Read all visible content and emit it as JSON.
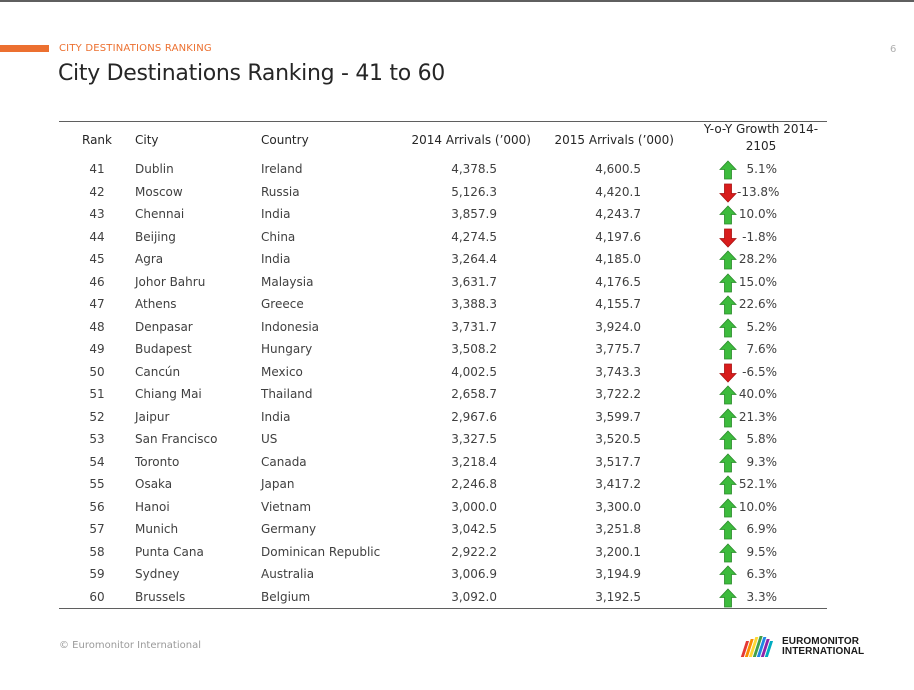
{
  "header": {
    "section_label": "CITY DESTINATIONS RANKING",
    "page_number": "6",
    "title": "City Destinations Ranking - 41 to 60"
  },
  "table": {
    "columns": {
      "rank": "Rank",
      "city": "City",
      "country": "Country",
      "arrivals_2014": "2014 Arrivals (’000)",
      "arrivals_2015": "2015 Arrivals (’000)",
      "growth_line1": "Y-o-Y Growth 2014-",
      "growth_line2": "2105"
    },
    "rows": [
      {
        "rank": "41",
        "city": "Dublin",
        "country": "Ireland",
        "a2014": "4,378.5",
        "a2015": "4,600.5",
        "growth": "5.1%",
        "dir": "up"
      },
      {
        "rank": "42",
        "city": "Moscow",
        "country": "Russia",
        "a2014": "5,126.3",
        "a2015": "4,420.1",
        "growth": "-13.8%",
        "dir": "down"
      },
      {
        "rank": "43",
        "city": "Chennai",
        "country": "India",
        "a2014": "3,857.9",
        "a2015": "4,243.7",
        "growth": "10.0%",
        "dir": "up"
      },
      {
        "rank": "44",
        "city": "Beijing",
        "country": "China",
        "a2014": "4,274.5",
        "a2015": "4,197.6",
        "growth": "-1.8%",
        "dir": "down"
      },
      {
        "rank": "45",
        "city": "Agra",
        "country": "India",
        "a2014": "3,264.4",
        "a2015": "4,185.0",
        "growth": "28.2%",
        "dir": "up"
      },
      {
        "rank": "46",
        "city": "Johor Bahru",
        "country": "Malaysia",
        "a2014": "3,631.7",
        "a2015": "4,176.5",
        "growth": "15.0%",
        "dir": "up"
      },
      {
        "rank": "47",
        "city": "Athens",
        "country": "Greece",
        "a2014": "3,388.3",
        "a2015": "4,155.7",
        "growth": "22.6%",
        "dir": "up"
      },
      {
        "rank": "48",
        "city": "Denpasar",
        "country": "Indonesia",
        "a2014": "3,731.7",
        "a2015": "3,924.0",
        "growth": "5.2%",
        "dir": "up"
      },
      {
        "rank": "49",
        "city": "Budapest",
        "country": "Hungary",
        "a2014": "3,508.2",
        "a2015": "3,775.7",
        "growth": "7.6%",
        "dir": "up"
      },
      {
        "rank": "50",
        "city": "Cancún",
        "country": "Mexico",
        "a2014": "4,002.5",
        "a2015": "3,743.3",
        "growth": "-6.5%",
        "dir": "down"
      },
      {
        "rank": "51",
        "city": "Chiang Mai",
        "country": "Thailand",
        "a2014": "2,658.7",
        "a2015": "3,722.2",
        "growth": "40.0%",
        "dir": "up"
      },
      {
        "rank": "52",
        "city": "Jaipur",
        "country": "India",
        "a2014": "2,967.6",
        "a2015": "3,599.7",
        "growth": "21.3%",
        "dir": "up"
      },
      {
        "rank": "53",
        "city": "San Francisco",
        "country": "US",
        "a2014": "3,327.5",
        "a2015": "3,520.5",
        "growth": "5.8%",
        "dir": "up"
      },
      {
        "rank": "54",
        "city": "Toronto",
        "country": "Canada",
        "a2014": "3,218.4",
        "a2015": "3,517.7",
        "growth": "9.3%",
        "dir": "up"
      },
      {
        "rank": "55",
        "city": "Osaka",
        "country": "Japan",
        "a2014": "2,246.8",
        "a2015": "3,417.2",
        "growth": "52.1%",
        "dir": "up"
      },
      {
        "rank": "56",
        "city": "Hanoi",
        "country": "Vietnam",
        "a2014": "3,000.0",
        "a2015": "3,300.0",
        "growth": "10.0%",
        "dir": "up"
      },
      {
        "rank": "57",
        "city": "Munich",
        "country": "Germany",
        "a2014": "3,042.5",
        "a2015": "3,251.8",
        "growth": "6.9%",
        "dir": "up"
      },
      {
        "rank": "58",
        "city": "Punta Cana",
        "country": "Dominican Republic",
        "a2014": "2,922.2",
        "a2015": "3,200.1",
        "growth": "9.5%",
        "dir": "up"
      },
      {
        "rank": "59",
        "city": "Sydney",
        "country": "Australia",
        "a2014": "3,006.9",
        "a2015": "3,194.9",
        "growth": "6.3%",
        "dir": "up"
      },
      {
        "rank": "60",
        "city": "Brussels",
        "country": "Belgium",
        "a2014": "3,092.0",
        "a2015": "3,192.5",
        "growth": "3.3%",
        "dir": "up"
      }
    ]
  },
  "icons": {
    "up": "arrow-up-icon",
    "down": "arrow-down-icon"
  },
  "colors": {
    "accent": "#ec7030",
    "up_arrow": "#3dbb3d",
    "down_arrow": "#d81c1c"
  },
  "footer": {
    "copyright": "© Euromonitor International",
    "logo_line1": "EUROMONITOR",
    "logo_line2": "INTERNATIONAL"
  }
}
